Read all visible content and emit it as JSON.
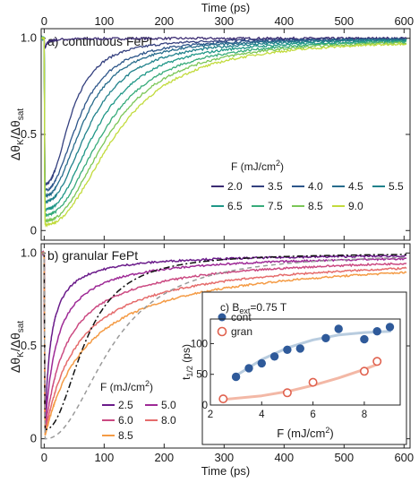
{
  "chart_data": [
    {
      "panel": "a",
      "type": "line",
      "title": "a) continuous FePt",
      "xlabel": "Time (ps)",
      "xlabel_position": "top",
      "ylabel_main": "Δθ",
      "ylabel_sub1": "K",
      "ylabel_mid": "/Δθ",
      "ylabel_sub2": "sat",
      "xlim": [
        -5,
        610
      ],
      "ylim": [
        -0.05,
        1.05
      ],
      "xticks": [
        "0",
        "100",
        "200",
        "300",
        "400",
        "500",
        "600"
      ],
      "yticks": [
        "0",
        "0.5",
        "1.0"
      ],
      "legend_title": "F (mJ/cm",
      "legend_title_sup": "2",
      "legend_title_end": ")",
      "legend_placement": "right",
      "series": [
        {
          "name": "2.0",
          "color": "#3b2b72",
          "minimum": 0.94,
          "half_recovery_ps": 3
        },
        {
          "name": "3.5",
          "color": "#34407f",
          "minimum": 0.24,
          "half_recovery_ps": 46
        },
        {
          "name": "4.0",
          "color": "#2d568a",
          "minimum": 0.21,
          "half_recovery_ps": 60
        },
        {
          "name": "4.5",
          "color": "#276c8c",
          "minimum": 0.18,
          "half_recovery_ps": 68
        },
        {
          "name": "5.5",
          "color": "#20818b",
          "minimum": 0.15,
          "half_recovery_ps": 79
        },
        {
          "name": "6.5",
          "color": "#1f9787",
          "minimum": 0.11,
          "half_recovery_ps": 91
        },
        {
          "name": "7.5",
          "color": "#37ab7a",
          "minimum": 0.08,
          "half_recovery_ps": 103
        },
        {
          "name": "8.5",
          "color": "#7bc657",
          "minimum": 0.05,
          "half_recovery_ps": 112
        },
        {
          "name": "9.0",
          "color": "#c2db3c",
          "minimum": 0.03,
          "half_recovery_ps": 122
        }
      ]
    },
    {
      "panel": "b",
      "type": "line",
      "title": "b) granular FePt",
      "xlabel": "Time (ps)",
      "ylabel_main": "Δθ",
      "ylabel_sub1": "K",
      "ylabel_mid": "/Δθ",
      "ylabel_sub2": "sat",
      "xlim": [
        -5,
        610
      ],
      "ylim": [
        -0.05,
        1.05
      ],
      "xticks": [
        "0",
        "100",
        "200",
        "300",
        "400",
        "500",
        "600"
      ],
      "yticks": [
        "0",
        "0.5",
        "1.0"
      ],
      "legend_title": "F (mJ/cm",
      "legend_title_sup": "2",
      "legend_title_end": ")",
      "legend_placement": "bottom-left",
      "series": [
        {
          "name": "2.5",
          "color": "#6a1b8a",
          "minimum": 0.05,
          "half_recovery_ps": 10
        },
        {
          "name": "5.0",
          "color": "#9e2a96",
          "minimum": 0.04,
          "half_recovery_ps": 20
        },
        {
          "name": "6.0",
          "color": "#cb4a82",
          "minimum": 0.03,
          "half_recovery_ps": 37
        },
        {
          "name": "8.0",
          "color": "#e56c6c",
          "minimum": 0.02,
          "half_recovery_ps": 55
        },
        {
          "name": "8.5",
          "color": "#f49b45",
          "minimum": 0.01,
          "half_recovery_ps": 71
        }
      ],
      "extra_curves": [
        {
          "style": "dash-dot",
          "color": "#111111",
          "minimum": 0.05,
          "half_recovery_ps": 68
        },
        {
          "style": "dashed",
          "color": "#9a9a9a",
          "minimum": 0.0,
          "half_recovery_ps": 112
        }
      ],
      "inset": {
        "type": "scatter",
        "title_prefix": "c) B",
        "title_sub": "ext",
        "title_suffix": "=0.75 T",
        "xlabel": "F (mJ/cm",
        "xlabel_sup": "2",
        "xlabel_end": ")",
        "ylabel": "t",
        "ylabel_sub": "1/2",
        "ylabel_end": " (ps)",
        "xlim": [
          2,
          9.4
        ],
        "ylim": [
          0,
          140
        ],
        "xticks": [
          "2",
          "4",
          "6",
          "8"
        ],
        "yticks": [
          "0",
          "50",
          "100"
        ],
        "series": [
          {
            "name": "cont",
            "color": "#2f5a9a",
            "fit_color": "#b8ccdf",
            "fill": "filled",
            "points": [
              [
                3.0,
                46
              ],
              [
                3.5,
                60
              ],
              [
                4.0,
                68
              ],
              [
                4.5,
                79
              ],
              [
                5.0,
                90
              ],
              [
                5.5,
                92
              ],
              [
                6.5,
                109
              ],
              [
                7.0,
                124
              ],
              [
                8.0,
                107
              ],
              [
                8.5,
                120
              ],
              [
                9.0,
                127
              ]
            ],
            "fit": [
              [
                3.0,
                48
              ],
              [
                4.0,
                74
              ],
              [
                5.0,
                93
              ],
              [
                6.0,
                106
              ],
              [
                7.0,
                114
              ],
              [
                8.0,
                118
              ],
              [
                9.0,
                120
              ]
            ]
          },
          {
            "name": "gran",
            "color": "#e0614e",
            "fit_color": "#f3b8a6",
            "fill": "open",
            "points": [
              [
                2.5,
                10
              ],
              [
                5.0,
                20
              ],
              [
                6.0,
                37
              ],
              [
                8.0,
                55
              ],
              [
                8.5,
                71
              ]
            ],
            "fit": [
              [
                2.5,
                9
              ],
              [
                4.0,
                15
              ],
              [
                5.0,
                22
              ],
              [
                6.0,
                32
              ],
              [
                7.0,
                44
              ],
              [
                8.0,
                58
              ],
              [
                8.5,
                66
              ]
            ]
          }
        ]
      }
    }
  ]
}
